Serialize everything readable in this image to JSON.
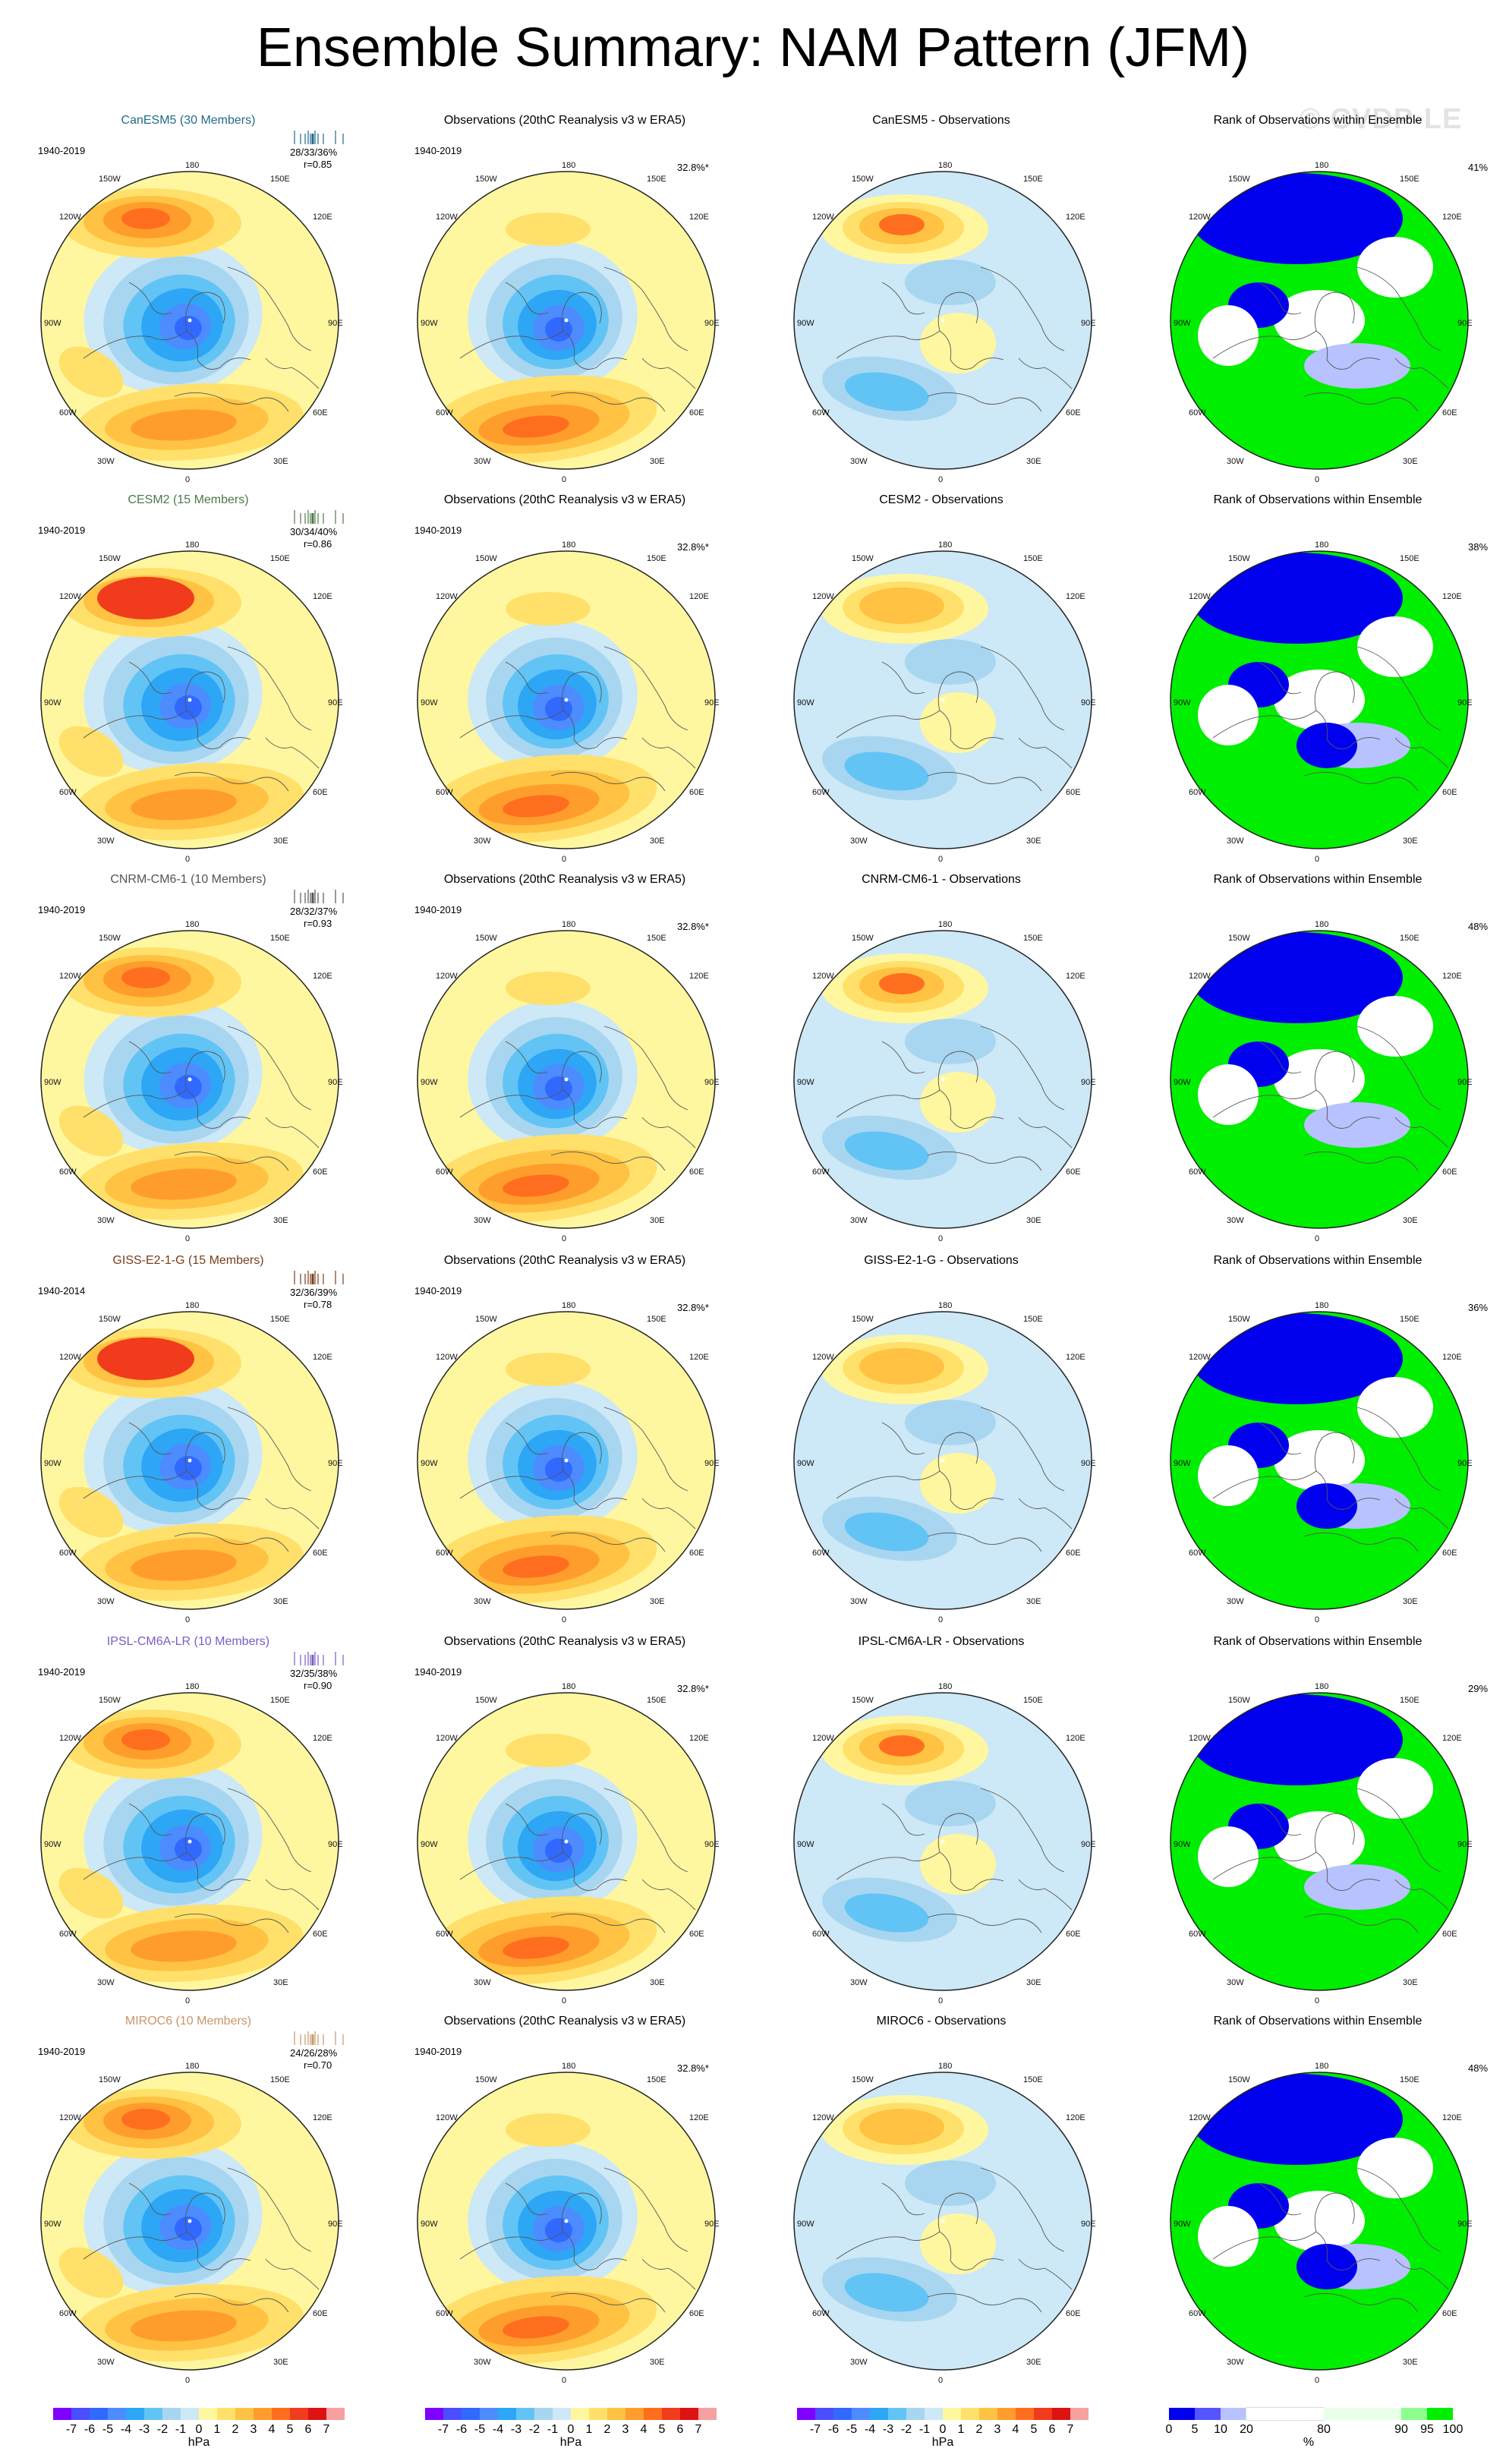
{
  "title": "Ensemble Summary: NAM Pattern (JFM)",
  "watermark": "© CVDP-LE",
  "grid_labels": {
    "top": "180",
    "bottom": "0",
    "upper_left": "150W",
    "upper_right": "150E",
    "mid_upper_left": "120W",
    "mid_upper_right": "120E",
    "left": "90W",
    "right": "90E",
    "mid_lower_left": "60W",
    "mid_lower_right": "60E",
    "lower_left": "30W",
    "lower_right": "30E"
  },
  "colors": {
    "ranks": [
      "#0000ee",
      "#5555ff",
      "#b8c2ff",
      "#ffffff",
      "#e9ffe9",
      "#8dff8d",
      "#00ee00"
    ],
    "hpa": [
      "#7f00ff",
      "#4b4dff",
      "#3169ff",
      "#4c8cff",
      "#2da6f5",
      "#62c4f5",
      "#a8d6f0",
      "#cde8f6",
      "#fff7a0",
      "#ffe06a",
      "#ffc242",
      "#ff9d2c",
      "#ff6e1e",
      "#f03c1c",
      "#dd1212",
      "#f7a0a0"
    ]
  },
  "rows": [
    {
      "model": {
        "title": "CanESM5 (30 Members)",
        "title_color": "#1f6b8c",
        "period": "1940-2019",
        "stats": "28/33/36%",
        "corr": "r=0.85"
      },
      "obs": {
        "title": "Observations (20thC Reanalysis v3 w ERA5)",
        "period": "1940-2019",
        "pct": "32.8%*"
      },
      "diff": {
        "title": "CanESM5 - Observations"
      },
      "rank": {
        "title": "Rank of Observations within Ensemble",
        "pct": "41%"
      }
    },
    {
      "model": {
        "title": "CESM2 (15 Members)",
        "title_color": "#4a7a4a",
        "period": "1940-2019",
        "stats": "30/34/40%",
        "corr": "r=0.86"
      },
      "obs": {
        "title": "Observations (20thC Reanalysis v3 w ERA5)",
        "period": "1940-2019",
        "pct": "32.8%*"
      },
      "diff": {
        "title": "CESM2 - Observations"
      },
      "rank": {
        "title": "Rank of Observations within Ensemble",
        "pct": "38%"
      }
    },
    {
      "model": {
        "title": "CNRM-CM6-1 (10 Members)",
        "title_color": "#555555",
        "period": "1940-2019",
        "stats": "28/32/37%",
        "corr": "r=0.93"
      },
      "obs": {
        "title": "Observations (20thC Reanalysis v3 w ERA5)",
        "period": "1940-2019",
        "pct": "32.8%*"
      },
      "diff": {
        "title": "CNRM-CM6-1 - Observations"
      },
      "rank": {
        "title": "Rank of Observations within Ensemble",
        "pct": "48%"
      }
    },
    {
      "model": {
        "title": "GISS-E2-1-G (15 Members)",
        "title_color": "#7a3d1a",
        "period": "1940-2014",
        "stats": "32/36/39%",
        "corr": "r=0.78"
      },
      "obs": {
        "title": "Observations (20thC Reanalysis v3 w ERA5)",
        "period": "1940-2019",
        "pct": "32.8%*"
      },
      "diff": {
        "title": "GISS-E2-1-G - Observations"
      },
      "rank": {
        "title": "Rank of Observations within Ensemble",
        "pct": "36%"
      }
    },
    {
      "model": {
        "title": "IPSL-CM6A-LR (10 Members)",
        "title_color": "#7a5cc4",
        "period": "1940-2019",
        "stats": "32/35/38%",
        "corr": "r=0.90"
      },
      "obs": {
        "title": "Observations (20thC Reanalysis v3 w ERA5)",
        "period": "1940-2019",
        "pct": "32.8%*"
      },
      "diff": {
        "title": "IPSL-CM6A-LR - Observations"
      },
      "rank": {
        "title": "Rank of Observations within Ensemble",
        "pct": "29%"
      }
    },
    {
      "model": {
        "title": "MIROC6 (10 Members)",
        "title_color": "#c8966a",
        "period": "1940-2019",
        "stats": "24/26/28%",
        "corr": "r=0.70"
      },
      "obs": {
        "title": "Observations (20thC Reanalysis v3 w ERA5)",
        "period": "1940-2019",
        "pct": "32.8%*"
      },
      "diff": {
        "title": "MIROC6 - Observations"
      },
      "rank": {
        "title": "Rank of Observations within Ensemble",
        "pct": "48%"
      }
    }
  ],
  "colorbars": {
    "hpa_ticks": [
      "-7",
      "-6",
      "-5",
      "-4",
      "-3",
      "-2",
      "-1",
      "0",
      "1",
      "2",
      "3",
      "4",
      "5",
      "6",
      "7"
    ],
    "hpa_unit": "hPa",
    "rank_ticks": [
      "0",
      "5",
      "10",
      "20",
      "80",
      "90",
      "95",
      "100"
    ],
    "rank_unit": "%"
  }
}
